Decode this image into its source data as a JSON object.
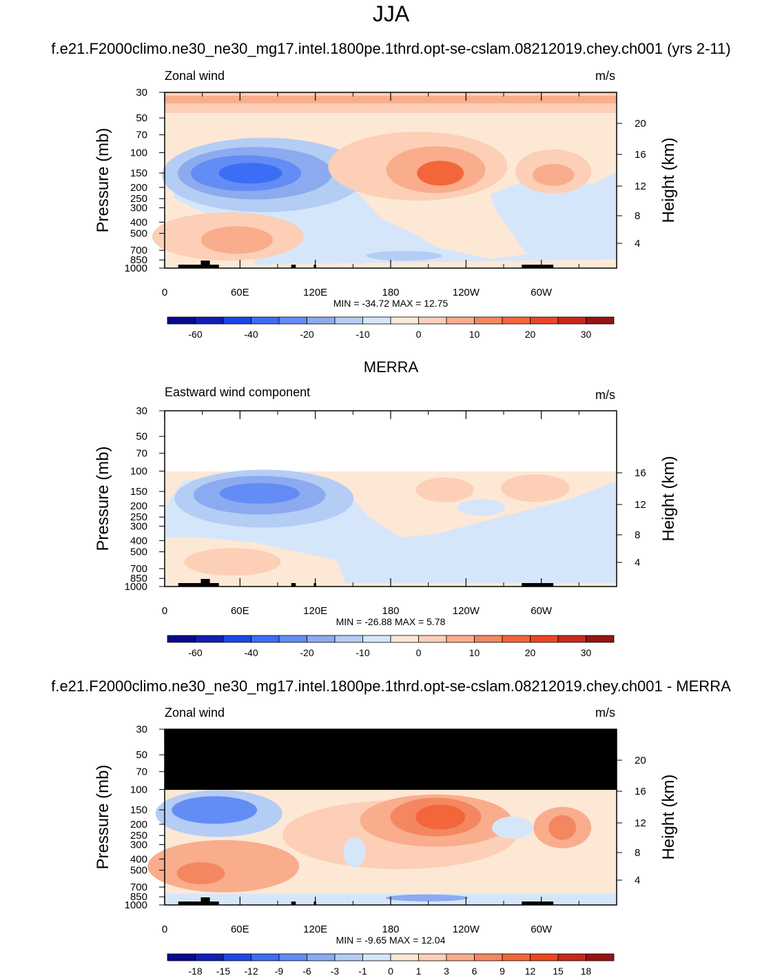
{
  "figure": {
    "title": "JJA",
    "colormap_full": [
      "#0a0a8c",
      "#0f1fb4",
      "#1e46e6",
      "#3c6ef5",
      "#648cf5",
      "#8caaf0",
      "#b4cdf5",
      "#d6e6fa",
      "#fde8d6",
      "#fccfb6",
      "#f9ad8c",
      "#f48760",
      "#f2663a",
      "#ec4620",
      "#c8281e",
      "#961414"
    ],
    "panels": [
      {
        "title": "f.e21.F2000climo.ne30_ne30_mg17.intel.1800pe.1thrd.opt-se-cslam.08212019.chey.ch001 (yrs 2-11)",
        "left_label": "Zonal wind",
        "units": "m/s",
        "stats": "MIN = -34.72  MAX =  12.75",
        "colorbar_labels": [
          "-60",
          "-40",
          "-20",
          "-10",
          "0",
          "10",
          "20",
          "30"
        ],
        "has_top_band": true,
        "masked_top": false,
        "variant": "model"
      },
      {
        "title": "MERRA",
        "left_label": "Eastward wind component",
        "units": "m/s",
        "stats": "MIN = -26.88  MAX =   5.78",
        "colorbar_labels": [
          "-60",
          "-40",
          "-20",
          "-10",
          "0",
          "10",
          "20",
          "30"
        ],
        "has_top_band": false,
        "masked_top": false,
        "variant": "merra"
      },
      {
        "title": "f.e21.F2000climo.ne30_ne30_mg17.intel.1800pe.1thrd.opt-se-cslam.08212019.chey.ch001 - MERRA",
        "left_label": "Zonal wind",
        "units": "m/s",
        "stats": "MIN =  -9.65  MAX =  12.04",
        "colorbar_labels": [
          "-18",
          "-15",
          "-12",
          "-9",
          "-6",
          "-3",
          "-1",
          "0",
          "1",
          "3",
          "6",
          "9",
          "12",
          "15",
          "18"
        ],
        "has_top_band": false,
        "masked_top": true,
        "variant": "diff"
      }
    ]
  },
  "chart_data": {
    "type": "heatmap",
    "x_tick_labels": [
      "0",
      "60E",
      "120E",
      "180",
      "120W",
      "60W"
    ],
    "x_range_deg": [
      0,
      360
    ],
    "y_axis": {
      "label": "Pressure (mb)",
      "scale": "log",
      "reversed": true,
      "tick_labels": [
        "30",
        "50",
        "70",
        "100",
        "150",
        "200",
        "250",
        "300",
        "400",
        "500",
        "700",
        "850",
        "1000"
      ],
      "range": [
        1000,
        30
      ]
    },
    "right_axis": {
      "label": "Height (km)",
      "tick_labels_full": [
        "4",
        "8",
        "12",
        "16",
        "20"
      ],
      "tick_labels_merra": [
        "4",
        "8",
        "12",
        "16"
      ]
    },
    "series": [
      {
        "name": "Zonal wind",
        "min": -34.72,
        "max": 12.75
      },
      {
        "name": "Eastward wind component",
        "min": -26.88,
        "max": 5.78
      },
      {
        "name": "Zonal wind",
        "min": -9.65,
        "max": 12.04
      }
    ]
  }
}
